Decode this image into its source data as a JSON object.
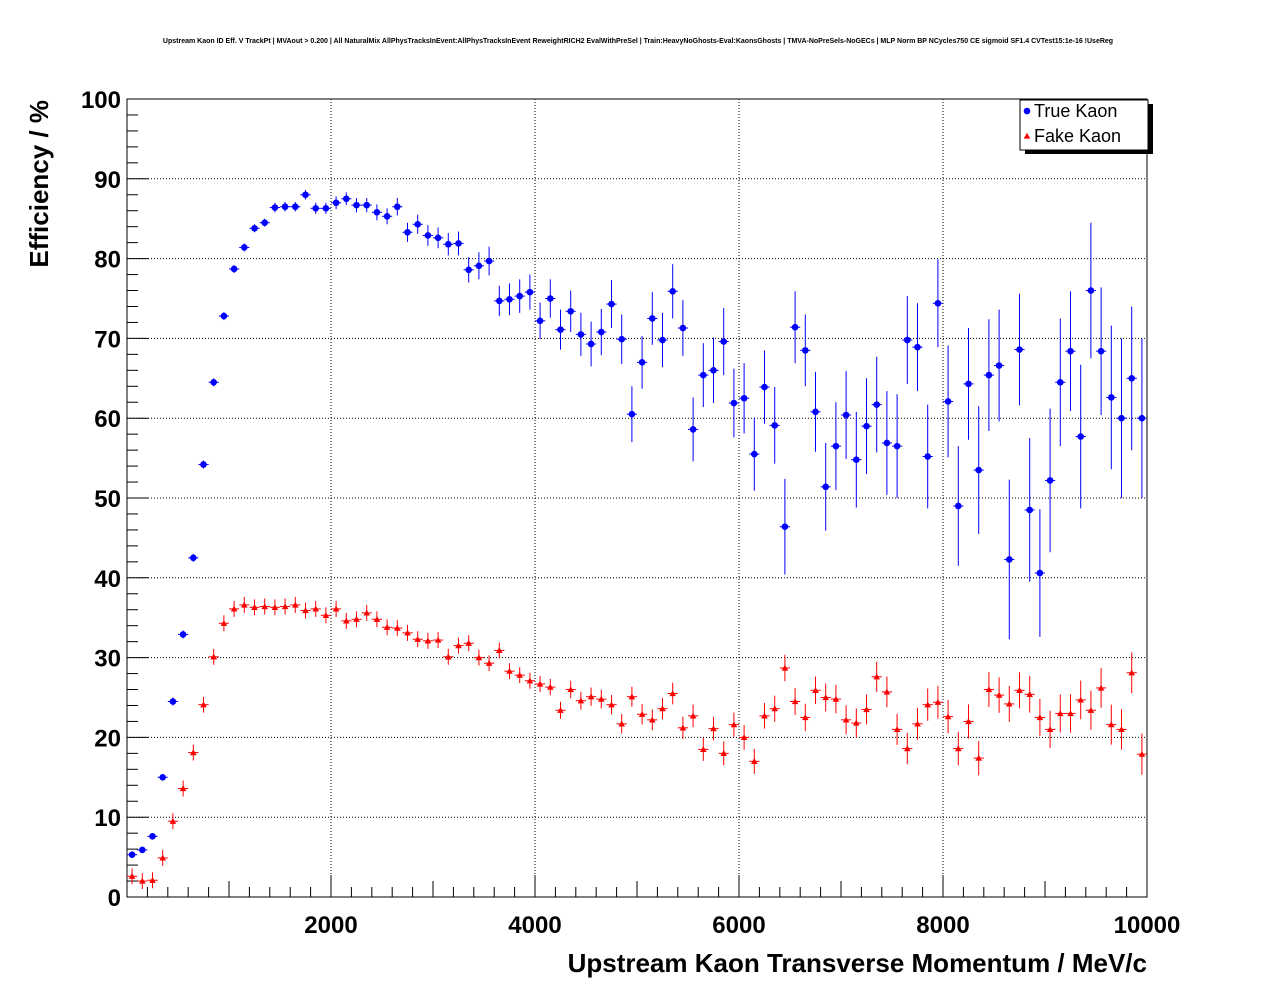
{
  "chart_data": {
    "type": "scatter",
    "title": "Upstream Kaon ID Eff. V TrackPt | MVAout > 0.200 | All NaturalMix AllPhysTracksInEvent:AllPhysTracksInEvent ReweightRICH2 EvalWithPreSel | Train:HeavyNoGhosts-Eval:KaonsGhosts | TMVA-NoPreSels-NoGECs | MLP Norm BP NCycles750 CE sigmoid SF1.4 CVTest15:1e-16 !UseReg",
    "xlabel": "Upstream Kaon Transverse Momentum / MeV/c",
    "ylabel": "Efficiency / %",
    "xlim": [
      0,
      10000
    ],
    "ylim": [
      0,
      100
    ],
    "x_ticks": [
      2000,
      4000,
      6000,
      8000,
      10000
    ],
    "y_ticks": [
      0,
      10,
      20,
      30,
      40,
      50,
      60,
      70,
      80,
      90,
      100
    ],
    "grid": true,
    "legend_position": "top-right",
    "bin_width": 100,
    "series": [
      {
        "name": "True Kaon",
        "color": "#0000ff",
        "marker": "circle",
        "x": [
          50,
          150,
          250,
          350,
          450,
          550,
          650,
          750,
          850,
          950,
          1050,
          1150,
          1250,
          1350,
          1450,
          1550,
          1650,
          1750,
          1850,
          1950,
          2050,
          2150,
          2250,
          2350,
          2450,
          2550,
          2650,
          2750,
          2850,
          2950,
          3050,
          3150,
          3250,
          3350,
          3450,
          3550,
          3650,
          3750,
          3850,
          3950,
          4050,
          4150,
          4250,
          4350,
          4450,
          4550,
          4650,
          4750,
          4850,
          4950,
          5050,
          5150,
          5250,
          5350,
          5450,
          5550,
          5650,
          5750,
          5850,
          5950,
          6050,
          6150,
          6250,
          6350,
          6450,
          6550,
          6650,
          6750,
          6850,
          6950,
          7050,
          7150,
          7250,
          7350,
          7450,
          7550,
          7650,
          7750,
          7850,
          7950,
          8050,
          8150,
          8250,
          8350,
          8450,
          8550,
          8650,
          8750,
          8850,
          8950,
          9050,
          9150,
          9250,
          9350,
          9450,
          9550,
          9650,
          9750,
          9850,
          9950
        ],
        "y": [
          5.3,
          5.9,
          7.6,
          15.0,
          24.5,
          32.9,
          42.5,
          54.2,
          64.5,
          72.8,
          78.7,
          81.4,
          83.8,
          84.5,
          86.4,
          86.5,
          86.5,
          88.0,
          86.3,
          86.3,
          87.0,
          87.5,
          86.7,
          86.7,
          85.8,
          85.3,
          86.5,
          83.3,
          84.3,
          82.9,
          82.6,
          81.8,
          81.9,
          78.6,
          79.1,
          79.7,
          74.7,
          74.9,
          75.3,
          75.8,
          72.2,
          75.0,
          71.1,
          73.4,
          70.5,
          69.3,
          70.8,
          74.3,
          69.9,
          60.5,
          67.0,
          72.5,
          69.8,
          75.9,
          71.3,
          58.6,
          65.4,
          66.0,
          69.6,
          61.9,
          62.5,
          55.5,
          63.9,
          59.1,
          46.4,
          71.4,
          68.5,
          60.8,
          51.4,
          56.5,
          60.4,
          54.8,
          59.0,
          61.7,
          56.9,
          56.5,
          69.8,
          68.9,
          55.2,
          74.4,
          62.1,
          49.0,
          64.3,
          53.5,
          65.4,
          66.6,
          42.3,
          68.6,
          48.5,
          40.6,
          52.2,
          64.5,
          68.4,
          57.7,
          76.0,
          68.4,
          62.6,
          60.0,
          65.0,
          60.0
        ],
        "yerr": [
          0.3,
          0.3,
          0.3,
          0.4,
          0.5,
          0.5,
          0.5,
          0.5,
          0.5,
          0.5,
          0.5,
          0.5,
          0.5,
          0.5,
          0.6,
          0.6,
          0.6,
          0.6,
          0.7,
          0.7,
          0.8,
          0.8,
          0.9,
          0.9,
          1.0,
          1.0,
          1.1,
          1.2,
          1.2,
          1.3,
          1.3,
          1.4,
          1.5,
          1.6,
          1.7,
          1.8,
          1.9,
          2.0,
          2.1,
          2.2,
          2.3,
          2.4,
          2.5,
          2.6,
          2.7,
          2.8,
          2.9,
          3.0,
          3.1,
          3.5,
          3.3,
          3.3,
          3.4,
          3.4,
          3.5,
          4.0,
          4.0,
          4.1,
          4.2,
          4.3,
          4.4,
          4.6,
          4.6,
          4.8,
          6.0,
          4.5,
          4.5,
          5.0,
          5.5,
          5.5,
          5.5,
          6.0,
          6.0,
          6.0,
          6.5,
          6.5,
          5.5,
          5.5,
          6.5,
          5.5,
          7.0,
          7.5,
          7.0,
          8.0,
          7.0,
          7.0,
          10.0,
          7.0,
          9.0,
          8.0,
          9.0,
          8.0,
          7.5,
          9.0,
          8.5,
          8.0,
          9.0,
          10.0,
          9.0,
          10.0
        ]
      },
      {
        "name": "Fake Kaon",
        "color": "#ff0000",
        "marker": "triangle",
        "x": [
          50,
          150,
          250,
          350,
          450,
          550,
          650,
          750,
          850,
          950,
          1050,
          1150,
          1250,
          1350,
          1450,
          1550,
          1650,
          1750,
          1850,
          1950,
          2050,
          2150,
          2250,
          2350,
          2450,
          2550,
          2650,
          2750,
          2850,
          2950,
          3050,
          3150,
          3250,
          3350,
          3450,
          3550,
          3650,
          3750,
          3850,
          3950,
          4050,
          4150,
          4250,
          4350,
          4450,
          4550,
          4650,
          4750,
          4850,
          4950,
          5050,
          5150,
          5250,
          5350,
          5450,
          5550,
          5650,
          5750,
          5850,
          5950,
          6050,
          6150,
          6250,
          6350,
          6450,
          6550,
          6650,
          6750,
          6850,
          6950,
          7050,
          7150,
          7250,
          7350,
          7450,
          7550,
          7650,
          7750,
          7850,
          7950,
          8050,
          8150,
          8250,
          8350,
          8450,
          8550,
          8650,
          8750,
          8850,
          8950,
          9050,
          9150,
          9250,
          9350,
          9450,
          9550,
          9650,
          9750,
          9850,
          9950
        ],
        "y": [
          2.6,
          2.0,
          2.1,
          4.9,
          9.5,
          13.6,
          18.1,
          24.1,
          30.1,
          34.3,
          36.1,
          36.6,
          36.3,
          36.4,
          36.3,
          36.4,
          36.6,
          35.9,
          36.1,
          35.3,
          36.1,
          34.6,
          34.8,
          35.6,
          34.8,
          33.8,
          33.7,
          33.1,
          32.3,
          32.1,
          32.2,
          30.1,
          31.5,
          31.8,
          30.0,
          29.3,
          30.9,
          28.3,
          27.8,
          27.1,
          26.7,
          26.3,
          23.4,
          26.0,
          24.6,
          25.1,
          24.8,
          24.1,
          21.7,
          25.1,
          22.9,
          22.2,
          23.6,
          25.5,
          21.2,
          22.7,
          18.5,
          21.1,
          18.0,
          21.6,
          20.0,
          17.0,
          22.7,
          23.6,
          28.7,
          24.5,
          22.5,
          25.9,
          25.0,
          24.8,
          22.2,
          21.8,
          23.5,
          27.6,
          25.7,
          21.0,
          18.6,
          21.7,
          24.1,
          24.4,
          22.6,
          18.6,
          22.0,
          17.4,
          26.0,
          25.3,
          24.2,
          25.9,
          25.4,
          22.5,
          21.0,
          23.0,
          23.0,
          24.7,
          23.4,
          26.2,
          21.6,
          21.0,
          28.1,
          17.9
        ]
      }
    ]
  }
}
